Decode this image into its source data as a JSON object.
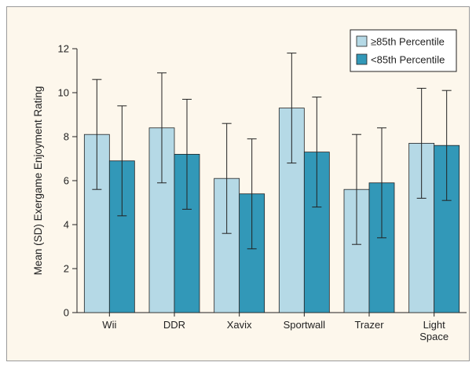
{
  "chart_data": {
    "type": "bar",
    "ylabel": "Mean (SD) Exergame Enjoyment Rating",
    "xlabel": "",
    "ylim": [
      0,
      12
    ],
    "yticks": [
      "0",
      "2",
      "4",
      "6",
      "8",
      "10",
      "12"
    ],
    "categories": [
      [
        "Wii"
      ],
      [
        "DDR"
      ],
      [
        "Xavix"
      ],
      [
        "Sportwall"
      ],
      [
        "Trazer"
      ],
      [
        "Light",
        "Space"
      ]
    ],
    "legend_position": "top-right",
    "series": [
      {
        "name": "≥85th Percentile",
        "color": "#b5d9e6",
        "values": [
          8.1,
          8.4,
          6.1,
          9.3,
          5.6,
          7.7
        ],
        "sd": [
          2.5,
          2.5,
          2.5,
          2.5,
          2.5,
          2.5
        ]
      },
      {
        "name": "<85th Percentile",
        "color": "#3298b8",
        "values": [
          6.9,
          7.2,
          5.4,
          7.3,
          5.9,
          7.6
        ],
        "sd": [
          2.5,
          2.5,
          2.5,
          2.5,
          2.5,
          2.5
        ]
      }
    ]
  }
}
